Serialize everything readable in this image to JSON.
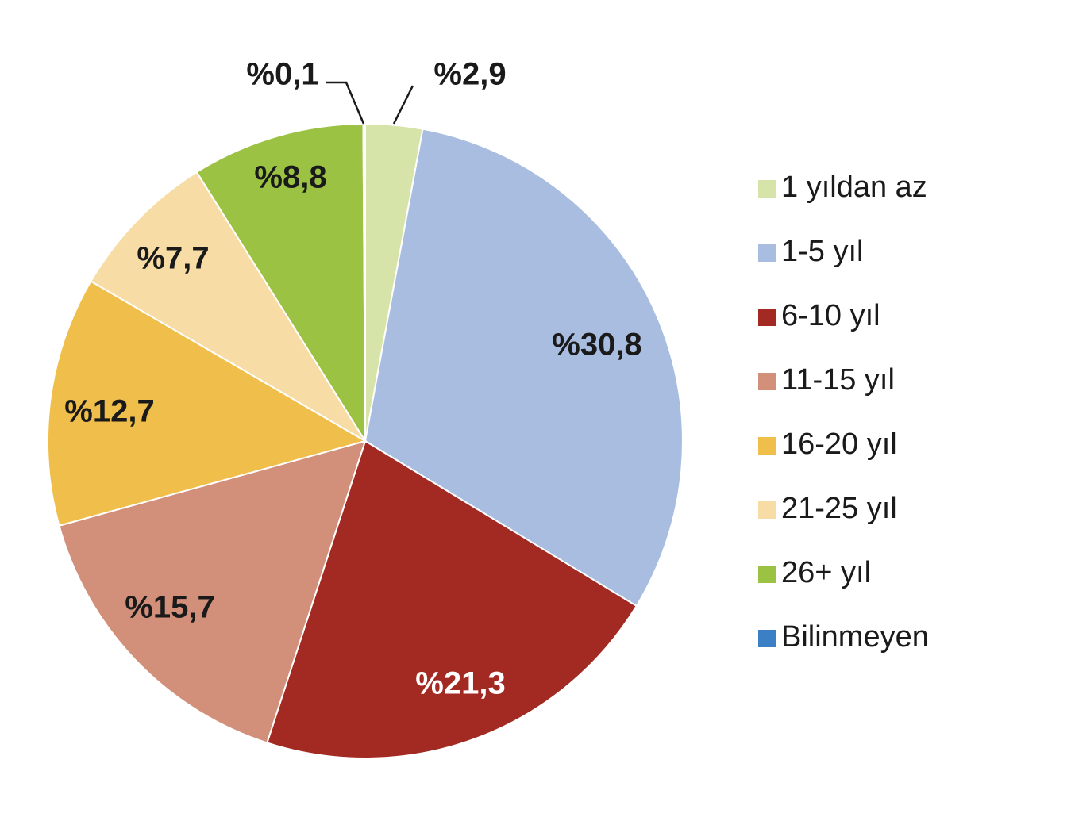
{
  "chart_data": {
    "type": "pie",
    "legend_position": "right",
    "slices": [
      {
        "name": "1 yıldan az",
        "value": 2.9,
        "label": "%2,9",
        "color": "#d7e4a9"
      },
      {
        "name": "1-5 yıl",
        "value": 30.8,
        "label": "%30,8",
        "color": "#a8bde0"
      },
      {
        "name": "6-10 yıl",
        "value": 21.3,
        "label": "%21,3",
        "color": "#a32a23"
      },
      {
        "name": "11-15 yıl",
        "value": 15.7,
        "label": "%15,7",
        "color": "#d28f7a"
      },
      {
        "name": "16-20 yıl",
        "value": 12.7,
        "label": "%12,7",
        "color": "#f0be4a"
      },
      {
        "name": "21-25 yıl",
        "value": 7.7,
        "label": "%7,7",
        "color": "#f8dca6"
      },
      {
        "name": "26+ yıl",
        "value": 8.8,
        "label": "%8,8",
        "color": "#9cc244"
      },
      {
        "name": "Bilinmeyen",
        "value": 0.1,
        "label": "%0,1",
        "color": "#3b7fc4"
      }
    ]
  }
}
